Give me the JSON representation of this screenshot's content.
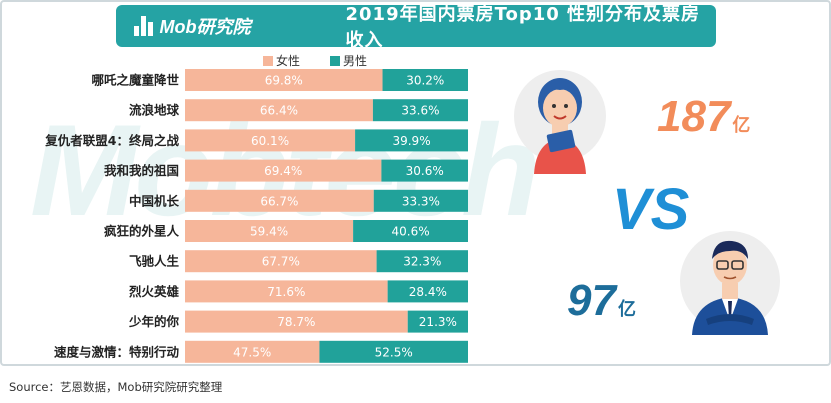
{
  "header": {
    "logo_text": "Mob研究院",
    "title": "2019年国内票房Top10 性别分布及票房收入"
  },
  "watermark": "Mobtech",
  "colors": {
    "female": "#f6b69a",
    "male": "#21a29a",
    "accent": "#25a3a4",
    "vs": "#1f8fd6",
    "female_rev": "#f28c5a",
    "male_rev": "#1d6d9a"
  },
  "chart_data": {
    "type": "bar",
    "stacked": "percent",
    "orientation": "horizontal",
    "categories": [
      "哪吒之魔童降世",
      "流浪地球",
      "复仇者联盟4：终局之战",
      "我和我的祖国",
      "中国机长",
      "疯狂的外星人",
      "飞驰人生",
      "烈火英雄",
      "少年的你",
      "速度与激情：特别行动"
    ],
    "series": [
      {
        "name": "女性",
        "values": [
          69.8,
          66.4,
          60.1,
          69.4,
          66.7,
          59.4,
          67.7,
          71.6,
          78.7,
          47.5
        ],
        "labels": [
          "69.8%",
          "66.4%",
          "60.1%",
          "69.4%",
          "66.7%",
          "59.4%",
          "67.7%",
          "71.6%",
          "78.7%",
          "47.5%"
        ]
      },
      {
        "name": "男性",
        "values": [
          30.2,
          33.6,
          39.9,
          30.6,
          33.3,
          40.6,
          32.3,
          28.4,
          21.3,
          52.5
        ],
        "labels": [
          "30.2%",
          "33.6%",
          "39.9%",
          "30.6%",
          "33.3%",
          "40.6%",
          "32.3%",
          "28.4%",
          "21.3%",
          "52.5%"
        ]
      }
    ],
    "legend_position": "top"
  },
  "revenue": {
    "female_value": "187",
    "male_value": "97",
    "unit": "亿",
    "vs_text": "VS"
  },
  "source": "Source：艺恩数据，Mob研究院研究整理"
}
